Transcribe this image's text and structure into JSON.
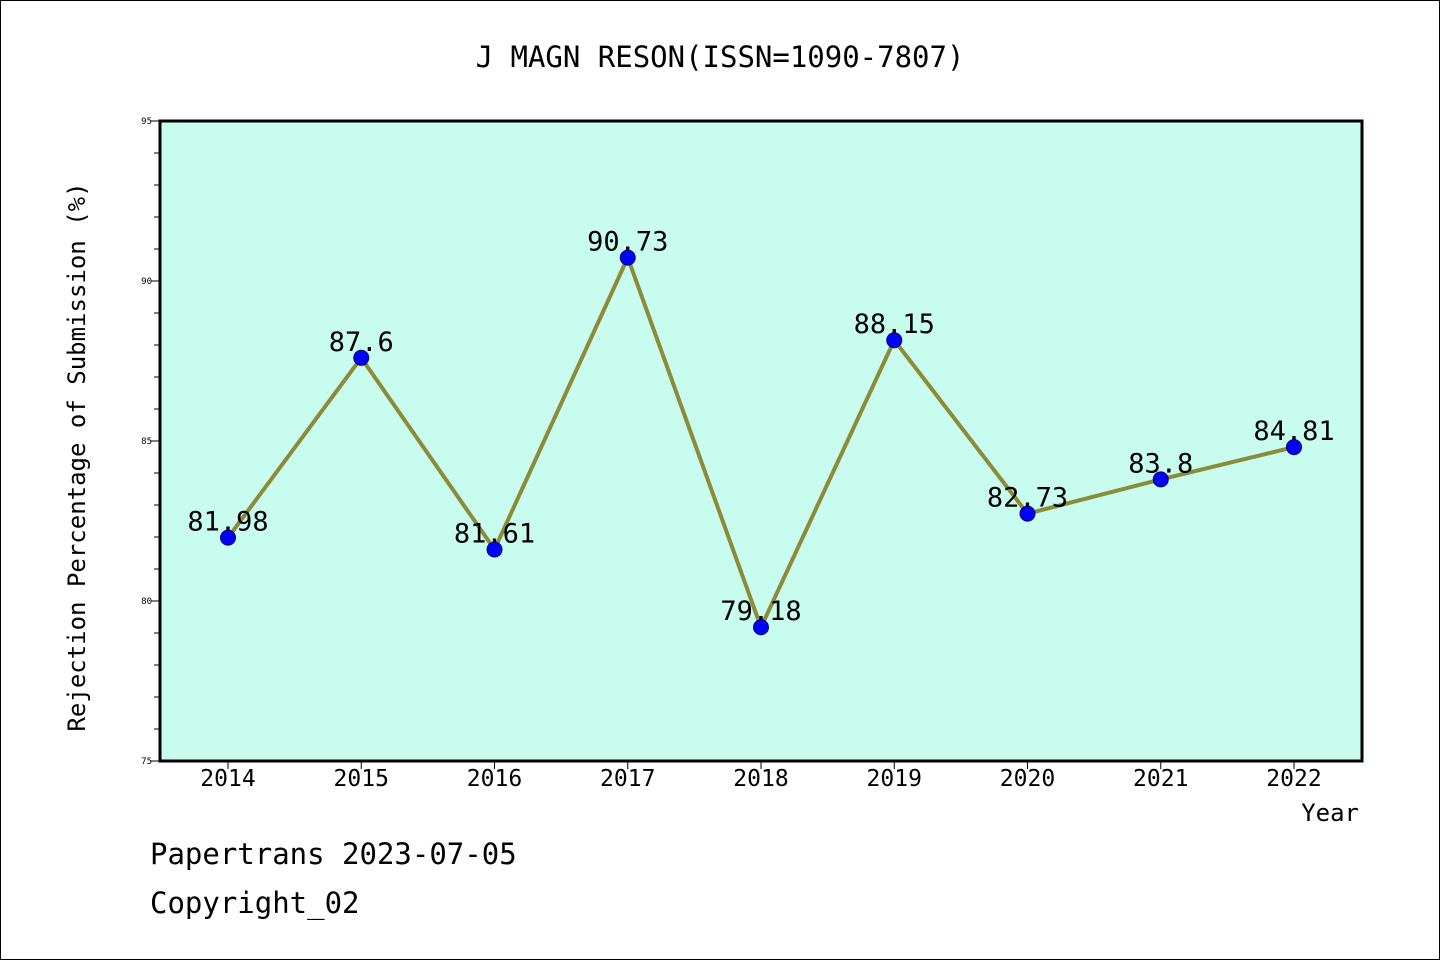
{
  "chart_data": {
    "type": "line",
    "title": "J MAGN RESON(ISSN=1090-7807)",
    "xlabel": "Year",
    "ylabel": "Rejection Percentage of Submission (%)",
    "categories": [
      "2014",
      "2015",
      "2016",
      "2017",
      "2018",
      "2019",
      "2020",
      "2021",
      "2022"
    ],
    "series": [
      {
        "values": [
          81.98,
          87.6,
          81.61,
          90.73,
          79.18,
          88.15,
          82.73,
          83.8,
          84.81
        ],
        "labels": [
          "81.98",
          "87.6",
          "81.61",
          "90.73",
          "79.18",
          "88.15",
          "82.73",
          "83.8",
          "84.81"
        ],
        "line_color": "#8b8b3a",
        "marker_color": "#0000ff"
      }
    ],
    "ylim": [
      75,
      95
    ],
    "yticks": [
      "75",
      "80",
      "85",
      "90",
      "95"
    ],
    "grid": false,
    "plot_background": "#c8fcee"
  },
  "footer": {
    "line1": "Papertrans 2023-07-05",
    "line2": "Copyright_02"
  }
}
